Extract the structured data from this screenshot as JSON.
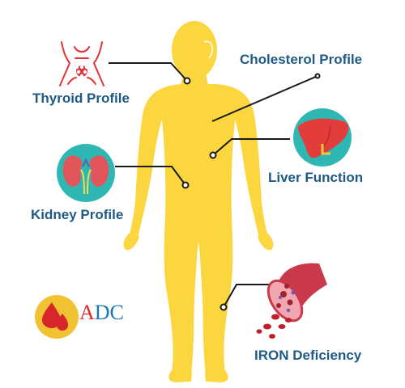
{
  "labels": {
    "thyroid": "Thyroid Profile",
    "cholesterol": "Cholesterol Profile",
    "liver": "Liver Function",
    "kidney": "Kidney Profile",
    "iron": "IRON Deficiency"
  },
  "logo": {
    "letter_a": "A",
    "letters_dc": "DC"
  },
  "colors": {
    "body": "#fbd63f",
    "label_text": "#1f5a84",
    "icon_circle": "#2fb8b3",
    "thyroid_icon": "#e2333a",
    "logo_circle": "#f1c232",
    "logo_drop": "#d8262d",
    "logo_a": "#e0262d",
    "logo_dc": "#1b78b8"
  },
  "icons": [
    "thyroid-icon",
    "kidney-icon",
    "liver-icon",
    "blood-vessel-icon",
    "blood-drop-icon"
  ]
}
